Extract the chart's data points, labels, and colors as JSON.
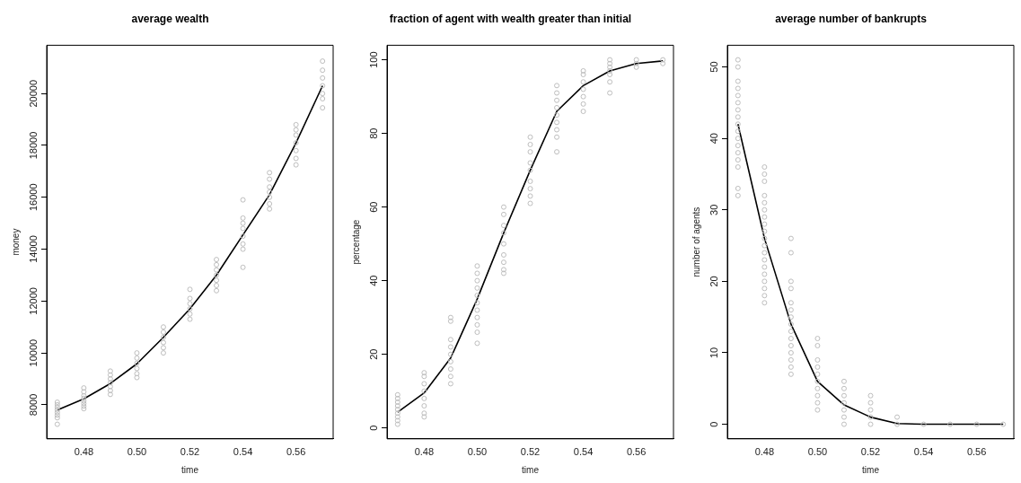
{
  "chart_data": [
    {
      "type": "scatter",
      "title": "average wealth",
      "xlabel": "time",
      "ylabel": "money",
      "xlim": [
        0.466,
        0.574
      ],
      "ylim": [
        6688,
        21862
      ],
      "xticks": [
        {
          "value": 0.48,
          "label": "0.48"
        },
        {
          "value": 0.5,
          "label": "0.50"
        },
        {
          "value": 0.52,
          "label": "0.52"
        },
        {
          "value": 0.54,
          "label": "0.54"
        },
        {
          "value": 0.56,
          "label": "0.56"
        }
      ],
      "yticks": [
        8000,
        10000,
        12000,
        14000,
        16000,
        18000,
        20000
      ],
      "grid": false,
      "legend": false,
      "series": [
        {
          "type": "scatter",
          "marker": "circle",
          "color": "#bebebe",
          "x": [
            0.47,
            0.47,
            0.47,
            0.47,
            0.47,
            0.47,
            0.47,
            0.47,
            0.48,
            0.48,
            0.48,
            0.48,
            0.48,
            0.48,
            0.48,
            0.48,
            0.49,
            0.49,
            0.49,
            0.49,
            0.49,
            0.49,
            0.49,
            0.5,
            0.5,
            0.5,
            0.5,
            0.5,
            0.5,
            0.51,
            0.51,
            0.51,
            0.51,
            0.51,
            0.51,
            0.52,
            0.52,
            0.52,
            0.52,
            0.52,
            0.52,
            0.53,
            0.53,
            0.53,
            0.53,
            0.53,
            0.53,
            0.53,
            0.54,
            0.54,
            0.54,
            0.54,
            0.54,
            0.54,
            0.54,
            0.54,
            0.55,
            0.55,
            0.55,
            0.55,
            0.55,
            0.55,
            0.55,
            0.56,
            0.56,
            0.56,
            0.56,
            0.56,
            0.56,
            0.56,
            0.57,
            0.57,
            0.57,
            0.57,
            0.57,
            0.57,
            0.57
          ],
          "values": [
            7250,
            7500,
            7600,
            7700,
            7800,
            7900,
            8000,
            8100,
            7850,
            7950,
            8050,
            8150,
            8250,
            8350,
            8500,
            8650,
            8400,
            8550,
            8700,
            8850,
            9000,
            9150,
            9300,
            9050,
            9200,
            9400,
            9600,
            9800,
            10000,
            10000,
            10200,
            10400,
            10600,
            10800,
            11000,
            11300,
            11500,
            11700,
            11900,
            12100,
            12450,
            12400,
            12600,
            12800,
            13000,
            13200,
            13400,
            13600,
            13300,
            14000,
            14200,
            14500,
            14800,
            15000,
            15200,
            15900,
            15550,
            15750,
            16000,
            16200,
            16400,
            16700,
            16950,
            17250,
            17500,
            17800,
            18100,
            18400,
            18600,
            18800,
            19450,
            19800,
            20000,
            20300,
            20600,
            20900,
            21250
          ]
        },
        {
          "type": "line",
          "marker": "none",
          "color": "#000000",
          "x": [
            0.47,
            0.48,
            0.49,
            0.5,
            0.51,
            0.52,
            0.53,
            0.54,
            0.55,
            0.56,
            0.57
          ],
          "values": [
            7800,
            8230,
            8820,
            9580,
            10600,
            11700,
            13000,
            14550,
            16100,
            18100,
            20300
          ]
        }
      ]
    },
    {
      "type": "scatter",
      "title": "fraction of agent with wealth greater than initial",
      "xlabel": "time",
      "ylabel": "percentage",
      "xlim": [
        0.466,
        0.574
      ],
      "ylim": [
        -2.96,
        103.96
      ],
      "xticks": [
        {
          "value": 0.48,
          "label": "0.48"
        },
        {
          "value": 0.5,
          "label": "0.50"
        },
        {
          "value": 0.52,
          "label": "0.52"
        },
        {
          "value": 0.54,
          "label": "0.54"
        },
        {
          "value": 0.56,
          "label": "0.56"
        }
      ],
      "yticks": [
        0,
        20,
        40,
        60,
        80,
        100
      ],
      "grid": false,
      "legend": false,
      "series": [
        {
          "type": "scatter",
          "marker": "circle",
          "color": "#bebebe",
          "x": [
            0.47,
            0.47,
            0.47,
            0.47,
            0.47,
            0.47,
            0.47,
            0.47,
            0.47,
            0.48,
            0.48,
            0.48,
            0.48,
            0.48,
            0.48,
            0.48,
            0.48,
            0.49,
            0.49,
            0.49,
            0.49,
            0.49,
            0.49,
            0.49,
            0.49,
            0.49,
            0.5,
            0.5,
            0.5,
            0.5,
            0.5,
            0.5,
            0.5,
            0.5,
            0.5,
            0.5,
            0.5,
            0.51,
            0.51,
            0.51,
            0.51,
            0.51,
            0.51,
            0.51,
            0.51,
            0.51,
            0.52,
            0.52,
            0.52,
            0.52,
            0.52,
            0.52,
            0.52,
            0.52,
            0.52,
            0.53,
            0.53,
            0.53,
            0.53,
            0.53,
            0.53,
            0.53,
            0.53,
            0.53,
            0.54,
            0.54,
            0.54,
            0.54,
            0.54,
            0.54,
            0.54,
            0.55,
            0.55,
            0.55,
            0.55,
            0.55,
            0.55,
            0.55,
            0.56,
            0.56,
            0.56,
            0.57,
            0.57
          ],
          "values": [
            1,
            2,
            3,
            4,
            5,
            6,
            7,
            8,
            9,
            3,
            4,
            6,
            8,
            10,
            12,
            14,
            15,
            12,
            14,
            16,
            18,
            20,
            22,
            24,
            29,
            30,
            23,
            26,
            28,
            30,
            32,
            34,
            36,
            38,
            40,
            42,
            44,
            42,
            43,
            45,
            47,
            50,
            53,
            55,
            58,
            60,
            61,
            63,
            65,
            67,
            70,
            72,
            75,
            77,
            79,
            75,
            79,
            81,
            83,
            85,
            87,
            89,
            91,
            93,
            86,
            88,
            90,
            92,
            94,
            96,
            97,
            91,
            94,
            96,
            97,
            98,
            99,
            100,
            98,
            99,
            100,
            99,
            100
          ]
        },
        {
          "type": "line",
          "marker": "none",
          "color": "#000000",
          "x": [
            0.47,
            0.48,
            0.49,
            0.5,
            0.51,
            0.52,
            0.53,
            0.54,
            0.55,
            0.56,
            0.57
          ],
          "values": [
            4.3,
            9.5,
            19,
            35,
            53,
            70,
            86,
            93,
            97,
            99,
            99.7
          ]
        }
      ]
    },
    {
      "type": "scatter",
      "title": "average number of bankrupts",
      "xlabel": "time",
      "ylabel": "number of agents",
      "xlim": [
        0.466,
        0.574
      ],
      "ylim": [
        -2.04,
        53.04
      ],
      "xticks": [
        {
          "value": 0.48,
          "label": "0.48"
        },
        {
          "value": 0.5,
          "label": "0.50"
        },
        {
          "value": 0.52,
          "label": "0.52"
        },
        {
          "value": 0.54,
          "label": "0.54"
        },
        {
          "value": 0.56,
          "label": "0.56"
        }
      ],
      "yticks": [
        0,
        10,
        20,
        30,
        40,
        50
      ],
      "grid": false,
      "legend": false,
      "series": [
        {
          "type": "scatter",
          "marker": "circle",
          "color": "#bebebe",
          "x": [
            0.47,
            0.47,
            0.47,
            0.47,
            0.47,
            0.47,
            0.47,
            0.47,
            0.47,
            0.47,
            0.47,
            0.47,
            0.47,
            0.47,
            0.47,
            0.47,
            0.47,
            0.48,
            0.48,
            0.48,
            0.48,
            0.48,
            0.48,
            0.48,
            0.48,
            0.48,
            0.48,
            0.48,
            0.48,
            0.48,
            0.48,
            0.48,
            0.48,
            0.48,
            0.48,
            0.48,
            0.49,
            0.49,
            0.49,
            0.49,
            0.49,
            0.49,
            0.49,
            0.49,
            0.49,
            0.49,
            0.49,
            0.49,
            0.49,
            0.49,
            0.49,
            0.5,
            0.5,
            0.5,
            0.5,
            0.5,
            0.5,
            0.5,
            0.5,
            0.5,
            0.5,
            0.51,
            0.51,
            0.51,
            0.51,
            0.51,
            0.51,
            0.51,
            0.52,
            0.52,
            0.52,
            0.52,
            0.52,
            0.53,
            0.53,
            0.54,
            0.55,
            0.56,
            0.57
          ],
          "values": [
            32,
            33,
            36,
            37,
            38,
            39,
            40,
            41,
            42,
            43,
            44,
            45,
            46,
            47,
            48,
            50,
            51,
            17,
            18,
            19,
            20,
            21,
            22,
            23,
            24,
            25,
            26,
            27,
            28,
            29,
            30,
            31,
            32,
            34,
            35,
            36,
            7,
            8,
            9,
            10,
            11,
            12,
            13,
            14,
            15,
            16,
            17,
            19,
            20,
            24,
            26,
            2,
            3,
            4,
            5,
            6,
            7,
            8,
            9,
            11,
            12,
            0,
            1,
            2,
            3,
            4,
            5,
            6,
            0,
            1,
            2,
            3,
            4,
            0,
            1,
            0,
            0,
            0,
            0
          ]
        },
        {
          "type": "line",
          "marker": "none",
          "color": "#000000",
          "x": [
            0.47,
            0.48,
            0.49,
            0.5,
            0.51,
            0.52,
            0.53,
            0.54,
            0.55,
            0.56,
            0.57
          ],
          "values": [
            42,
            26,
            14,
            6,
            2.7,
            1,
            0.1,
            0,
            0,
            0,
            0
          ]
        }
      ]
    }
  ]
}
